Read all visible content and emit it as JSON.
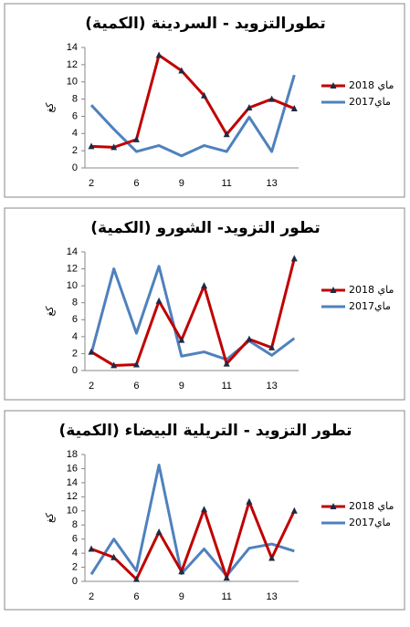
{
  "chart_data": [
    {
      "type": "line",
      "title": "تطورالتزويد - السردينة (الكمية)",
      "y_label": "كغ",
      "categories": [
        "2",
        null,
        "6",
        null,
        "9",
        null,
        "11",
        null,
        "13",
        null
      ],
      "ylim": [
        0,
        14
      ],
      "yticks": [
        0,
        2,
        4,
        6,
        8,
        10,
        12,
        14
      ],
      "series": [
        {
          "name": "ماي 2018",
          "color": "#c00000",
          "values": [
            2.5,
            2.4,
            3.3,
            13.1,
            11.3,
            8.4,
            3.9,
            7.0,
            8.0,
            6.9
          ]
        },
        {
          "name": "ماي2017",
          "color": "#4f81bd",
          "values": [
            7.3,
            4.5,
            1.9,
            2.6,
            1.4,
            2.6,
            1.9,
            5.9,
            1.9,
            10.8
          ]
        }
      ]
    },
    {
      "type": "line",
      "title": "تطور التزويد- الشورو (الكمية)",
      "y_label": "كغ",
      "categories": [
        "2",
        null,
        "6",
        null,
        "9",
        null,
        "11",
        null,
        "13",
        null
      ],
      "ylim": [
        0,
        14
      ],
      "yticks": [
        0,
        2,
        4,
        6,
        8,
        10,
        12,
        14
      ],
      "series": [
        {
          "name": "ماي 2018",
          "color": "#c00000",
          "values": [
            2.2,
            0.6,
            0.7,
            8.2,
            3.6,
            10.0,
            0.8,
            3.7,
            2.7,
            13.2
          ]
        },
        {
          "name": "ماي2017",
          "color": "#4f81bd",
          "values": [
            2.0,
            12.0,
            4.4,
            12.3,
            1.7,
            2.2,
            1.3,
            3.5,
            1.8,
            3.8
          ]
        }
      ]
    },
    {
      "type": "line",
      "title": "تطور التزويد - التريلية البيضاء (الكمية)",
      "y_label": "كغ",
      "categories": [
        "2",
        null,
        "6",
        null,
        "9",
        null,
        "11",
        null,
        "13",
        null
      ],
      "ylim": [
        0,
        18
      ],
      "yticks": [
        0,
        2,
        4,
        6,
        8,
        10,
        12,
        14,
        16,
        18
      ],
      "series": [
        {
          "name": "ماي 2018",
          "color": "#c00000",
          "values": [
            4.6,
            3.4,
            0.3,
            7.0,
            1.4,
            10.2,
            0.5,
            11.3,
            3.3,
            10.0
          ]
        },
        {
          "name": "ماي2017",
          "color": "#4f81bd",
          "values": [
            1.0,
            6.0,
            1.5,
            16.5,
            1.1,
            4.6,
            0.8,
            4.7,
            5.3,
            4.3
          ]
        }
      ]
    }
  ]
}
